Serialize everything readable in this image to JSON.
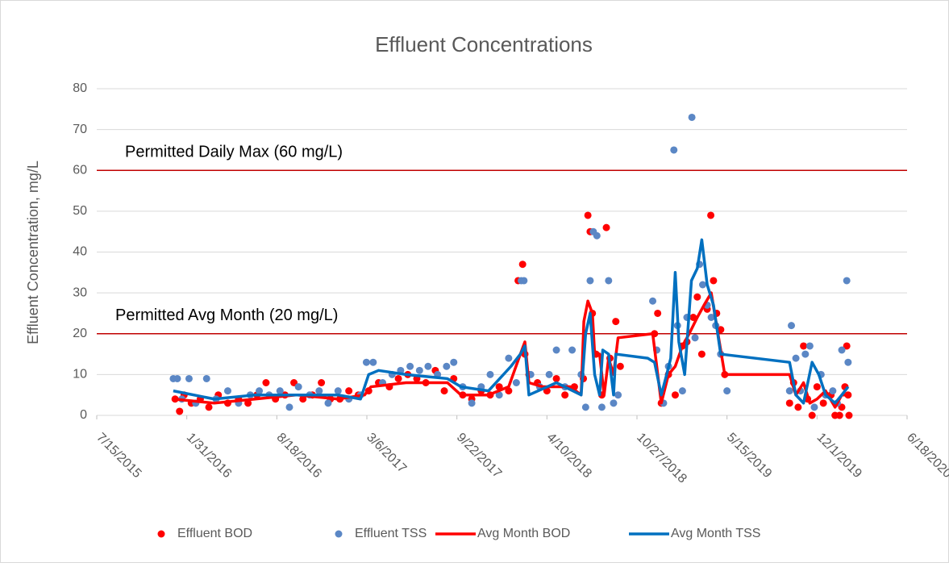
{
  "chart_data": {
    "type": "scatter",
    "title": "Effluent Concentrations",
    "y_label": "Effluent Concentration, mg/L",
    "ylim": [
      0,
      80
    ],
    "yticks": [
      0,
      10,
      20,
      30,
      40,
      50,
      60,
      70,
      80
    ],
    "grid": true,
    "xlim": [
      "2015-07-15",
      "2020-06-18"
    ],
    "xticks": [
      {
        "value": "2015-07-15",
        "label": "7/15/2015"
      },
      {
        "value": "2016-01-31",
        "label": "1/31/2016"
      },
      {
        "value": "2016-08-18",
        "label": "8/18/2016"
      },
      {
        "value": "2017-03-06",
        "label": "3/6/2017"
      },
      {
        "value": "2017-09-22",
        "label": "9/22/2017"
      },
      {
        "value": "2018-04-10",
        "label": "4/10/2018"
      },
      {
        "value": "2018-10-27",
        "label": "10/27/2018"
      },
      {
        "value": "2019-05-15",
        "label": "5/15/2019"
      },
      {
        "value": "2019-12-01",
        "label": "12/1/2019"
      },
      {
        "value": "2020-06-18",
        "label": "6/18/2020"
      }
    ],
    "legend": "bottom",
    "annotations": [
      {
        "text": "Permitted Daily Max (60 mg/L)",
        "value": 60,
        "color": "#c00000"
      },
      {
        "text": "Permitted Avg Month (20 mg/L)",
        "value": 20,
        "color": "#c00000"
      }
    ],
    "series": [
      {
        "name": "Effluent BOD",
        "mode": "markers",
        "color": "#ff0000",
        "x": [
          "2016-01-05",
          "2016-01-15",
          "2016-01-25",
          "2016-02-10",
          "2016-03-01",
          "2016-03-20",
          "2016-04-10",
          "2016-05-01",
          "2016-05-25",
          "2016-06-15",
          "2016-07-05",
          "2016-07-25",
          "2016-08-15",
          "2016-09-05",
          "2016-09-25",
          "2016-10-15",
          "2016-11-05",
          "2016-11-25",
          "2016-12-15",
          "2017-01-05",
          "2017-01-25",
          "2017-02-15",
          "2017-03-10",
          "2017-04-01",
          "2017-04-25",
          "2017-05-15",
          "2017-06-05",
          "2017-06-25",
          "2017-07-15",
          "2017-08-05",
          "2017-08-25",
          "2017-09-15",
          "2017-10-05",
          "2017-10-25",
          "2017-11-15",
          "2017-12-05",
          "2017-12-25",
          "2018-01-15",
          "2018-02-05",
          "2018-02-15",
          "2018-02-20",
          "2018-03-01",
          "2018-03-20",
          "2018-04-10",
          "2018-05-01",
          "2018-05-20",
          "2018-06-10",
          "2018-06-30",
          "2018-07-10",
          "2018-07-15",
          "2018-07-20",
          "2018-07-28",
          "2018-08-10",
          "2018-08-20",
          "2018-08-28",
          "2018-09-10",
          "2018-09-20",
          "2018-12-05",
          "2018-12-12",
          "2018-12-20",
          "2019-01-05",
          "2019-01-20",
          "2019-02-05",
          "2019-02-15",
          "2019-03-01",
          "2019-03-10",
          "2019-03-20",
          "2019-04-01",
          "2019-04-09",
          "2019-04-15",
          "2019-04-22",
          "2019-05-01",
          "2019-05-10",
          "2019-10-01",
          "2019-10-10",
          "2019-10-20",
          "2019-11-01",
          "2019-11-10",
          "2019-11-20",
          "2019-12-01",
          "2019-12-15",
          "2020-01-01",
          "2020-01-10",
          "2020-01-20",
          "2020-01-25",
          "2020-02-01",
          "2020-02-05",
          "2020-02-08",
          "2020-02-10"
        ],
        "values": [
          4,
          1,
          5,
          3,
          4,
          2,
          5,
          3,
          4,
          3,
          5,
          8,
          4,
          5,
          8,
          4,
          5,
          8,
          4,
          4,
          6,
          5,
          6,
          8,
          7,
          9,
          10,
          9,
          8,
          11,
          6,
          9,
          5,
          4,
          6,
          5,
          7,
          6,
          33,
          37,
          15,
          10,
          8,
          6,
          9,
          5,
          7,
          9,
          49,
          45,
          25,
          15,
          5,
          46,
          14,
          23,
          12,
          20,
          25,
          3,
          10,
          5,
          17,
          18,
          24,
          29,
          15,
          26,
          49,
          33,
          25,
          21,
          10,
          3,
          8,
          2,
          17,
          4,
          0,
          7,
          3,
          5,
          0,
          0,
          2,
          7,
          17,
          5,
          0
        ]
      },
      {
        "name": "Effluent TSS",
        "mode": "markers",
        "color": "#5b87c5",
        "x": [
          "2016-01-01",
          "2016-01-10",
          "2016-01-20",
          "2016-02-05",
          "2016-02-20",
          "2016-03-15",
          "2016-04-05",
          "2016-05-01",
          "2016-05-25",
          "2016-06-20",
          "2016-07-10",
          "2016-08-01",
          "2016-08-25",
          "2016-09-15",
          "2016-10-05",
          "2016-10-30",
          "2016-11-20",
          "2016-12-10",
          "2017-01-01",
          "2017-01-25",
          "2017-02-20",
          "2017-03-05",
          "2017-03-20",
          "2017-04-10",
          "2017-05-01",
          "2017-05-20",
          "2017-06-10",
          "2017-07-01",
          "2017-07-20",
          "2017-08-10",
          "2017-08-30",
          "2017-09-15",
          "2017-10-05",
          "2017-10-25",
          "2017-11-15",
          "2017-12-05",
          "2017-12-25",
          "2018-01-15",
          "2018-02-01",
          "2018-02-12",
          "2018-02-18",
          "2018-03-05",
          "2018-03-25",
          "2018-04-15",
          "2018-05-01",
          "2018-05-20",
          "2018-06-05",
          "2018-06-25",
          "2018-07-05",
          "2018-07-15",
          "2018-07-22",
          "2018-07-30",
          "2018-08-10",
          "2018-08-25",
          "2018-09-05",
          "2018-09-15",
          "2018-12-01",
          "2018-12-10",
          "2018-12-25",
          "2019-01-05",
          "2019-01-17",
          "2019-01-25",
          "2019-02-05",
          "2019-02-15",
          "2019-02-26",
          "2019-03-05",
          "2019-03-15",
          "2019-03-22",
          "2019-04-01",
          "2019-04-10",
          "2019-04-20",
          "2019-05-01",
          "2019-05-15",
          "2019-10-01",
          "2019-10-05",
          "2019-10-15",
          "2019-10-25",
          "2019-11-05",
          "2019-11-15",
          "2019-11-25",
          "2019-12-10",
          "2019-12-20",
          "2020-01-05",
          "2020-01-15",
          "2020-01-25",
          "2020-02-05",
          "2020-02-08"
        ],
        "values": [
          9,
          9,
          4,
          9,
          3,
          9,
          4,
          6,
          3,
          5,
          6,
          5,
          6,
          2,
          7,
          5,
          6,
          3,
          6,
          4,
          5,
          13,
          13,
          8,
          10,
          11,
          12,
          11,
          12,
          10,
          12,
          13,
          7,
          3,
          7,
          10,
          5,
          14,
          8,
          33,
          33,
          10,
          7,
          10,
          16,
          7,
          16,
          10,
          2,
          33,
          45,
          44,
          2,
          33,
          3,
          5,
          28,
          16,
          3,
          12,
          65,
          22,
          6,
          24,
          73,
          19,
          37,
          32,
          27,
          24,
          22,
          15,
          6,
          6,
          22,
          14,
          6,
          15,
          17,
          2,
          10,
          5,
          6,
          3,
          16,
          33,
          13
        ]
      },
      {
        "name": "Avg Month BOD",
        "mode": "lines",
        "color": "#ff0000",
        "x": [
          "2016-01-01",
          "2016-04-01",
          "2016-07-01",
          "2016-10-01",
          "2017-01-01",
          "2017-03-01",
          "2017-03-15",
          "2017-06-01",
          "2017-09-01",
          "2017-10-01",
          "2017-12-01",
          "2018-01-15",
          "2018-02-10",
          "2018-02-20",
          "2018-03-01",
          "2018-04-01",
          "2018-06-01",
          "2018-06-25",
          "2018-07-01",
          "2018-07-10",
          "2018-07-20",
          "2018-07-25",
          "2018-08-05",
          "2018-08-15",
          "2018-08-25",
          "2018-09-05",
          "2018-09-15",
          "2018-12-01",
          "2018-12-20",
          "2019-01-05",
          "2019-01-20",
          "2019-02-05",
          "2019-02-20",
          "2019-03-10",
          "2019-03-25",
          "2019-04-10",
          "2019-04-25",
          "2019-05-10",
          "2019-10-01",
          "2019-10-15",
          "2019-11-01",
          "2019-11-15",
          "2019-12-01",
          "2019-12-20",
          "2020-01-10",
          "2020-01-25",
          "2020-02-08"
        ],
        "values": [
          4,
          3,
          4,
          5,
          4,
          5,
          7,
          8,
          8,
          5,
          5,
          7,
          15,
          18,
          8,
          7,
          7,
          5,
          23,
          28,
          25,
          15,
          15,
          5,
          14,
          10,
          19,
          20,
          3,
          10,
          12,
          17,
          20,
          24,
          27,
          30,
          20,
          10,
          10,
          5,
          8,
          3,
          4,
          6,
          2,
          5,
          5
        ]
      },
      {
        "name": "Avg Month TSS",
        "mode": "lines",
        "color": "#0070c0",
        "x": [
          "2016-01-01",
          "2016-04-01",
          "2016-07-01",
          "2016-10-01",
          "2017-01-01",
          "2017-02-20",
          "2017-03-10",
          "2017-04-01",
          "2017-06-01",
          "2017-09-01",
          "2017-10-01",
          "2017-12-01",
          "2018-01-20",
          "2018-02-10",
          "2018-02-20",
          "2018-03-01",
          "2018-05-01",
          "2018-06-25",
          "2018-07-05",
          "2018-07-15",
          "2018-07-25",
          "2018-08-05",
          "2018-08-12",
          "2018-08-25",
          "2018-09-05",
          "2018-09-10",
          "2018-11-20",
          "2018-12-05",
          "2018-12-20",
          "2019-01-01",
          "2019-01-10",
          "2019-01-20",
          "2019-01-28",
          "2019-02-10",
          "2019-02-25",
          "2019-03-10",
          "2019-03-20",
          "2019-04-01",
          "2019-04-15",
          "2019-05-01",
          "2019-10-01",
          "2019-10-15",
          "2019-11-01",
          "2019-11-20",
          "2019-12-05",
          "2019-12-20",
          "2020-01-10",
          "2020-01-25",
          "2020-02-08"
        ],
        "values": [
          6,
          4,
          5,
          5,
          5,
          4,
          10,
          11,
          10,
          9,
          7,
          6,
          12,
          15,
          17,
          5,
          8,
          5,
          20,
          25,
          10,
          5,
          16,
          15,
          5,
          15,
          14,
          13,
          5,
          10,
          14,
          35,
          18,
          10,
          33,
          36,
          43,
          32,
          27,
          15,
          13,
          5,
          3,
          13,
          10,
          5,
          3,
          5,
          7
        ]
      }
    ]
  }
}
